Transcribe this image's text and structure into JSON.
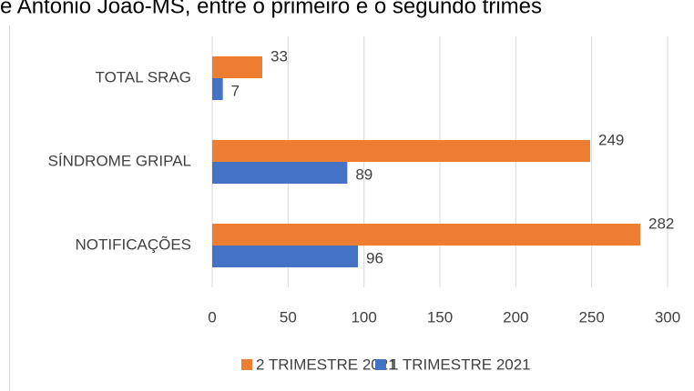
{
  "chart_data": {
    "type": "hbar",
    "title": "e Antonio João-MS, entre o primeiro e o segundo trimes",
    "categories": [
      "TOTAL SRAG",
      "SÍNDROME GRIPAL",
      "NOTIFICAÇÕES"
    ],
    "series": [
      {
        "name": "2 TRIMESTRE 2021",
        "color": "#ed7d31",
        "values": [
          33,
          249,
          282
        ]
      },
      {
        "name": "1 TRIMESTRE 2021",
        "color": "#4472c4",
        "values": [
          7,
          89,
          96
        ]
      }
    ],
    "xlim": [
      0,
      300
    ],
    "xticks": [
      0,
      50,
      100,
      150,
      200,
      250,
      300
    ],
    "grid": true
  }
}
